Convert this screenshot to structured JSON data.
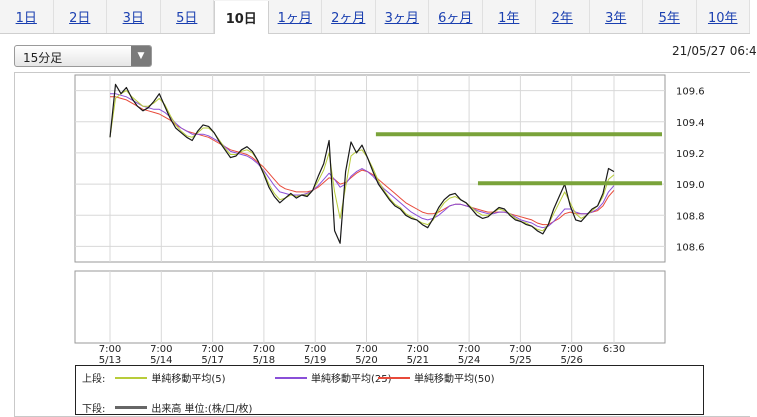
{
  "tabs": [
    "1日",
    "2日",
    "3日",
    "5日",
    "10日",
    "1ヶ月",
    "2ヶ月",
    "3ヶ月",
    "6ヶ月",
    "1年",
    "2年",
    "3年",
    "5年",
    "10年"
  ],
  "active_tab": "10日",
  "interval_select": {
    "value": "15分足"
  },
  "datetime": "21/05/27 06:4",
  "legend": {
    "upper_label": "上段:",
    "lower_label": "下段:",
    "sma5": {
      "label": "単純移動平均(5)",
      "color": "#b8cc3a"
    },
    "sma25": {
      "label": "単純移動平均(25)",
      "color": "#8a4fd8"
    },
    "sma50": {
      "label": "単純移動平均(50)",
      "color": "#e84a3a"
    },
    "volume": {
      "label": "出来高 単位:(株/口/枚)",
      "color": "#666666"
    }
  },
  "chart_data": {
    "type": "line",
    "ylim": [
      108.5,
      109.7
    ],
    "yticks": [
      "109.6",
      "109.4",
      "109.2",
      "109.0",
      "108.8",
      "108.6"
    ],
    "x_labels": [
      {
        "time": "7:00",
        "date": "5/13"
      },
      {
        "time": "7:00",
        "date": "5/14"
      },
      {
        "time": "7:00",
        "date": "5/17"
      },
      {
        "time": "7:00",
        "date": "5/18"
      },
      {
        "time": "7:00",
        "date": "5/19"
      },
      {
        "time": "7:00",
        "date": "5/20"
      },
      {
        "time": "7:00",
        "date": "5/21"
      },
      {
        "time": "7:00",
        "date": "5/24"
      },
      {
        "time": "7:00",
        "date": "5/25"
      },
      {
        "time": "7:00",
        "date": "5/26"
      },
      {
        "time": "6:30",
        "date": ""
      }
    ],
    "price_color": "#1a1a1a",
    "series": [
      {
        "key": "price",
        "values": [
          109.3,
          109.64,
          109.58,
          109.62,
          109.55,
          109.5,
          109.47,
          109.49,
          109.53,
          109.58,
          109.5,
          109.42,
          109.36,
          109.33,
          109.3,
          109.28,
          109.34,
          109.38,
          109.37,
          109.33,
          109.27,
          109.22,
          109.17,
          109.18,
          109.22,
          109.24,
          109.21,
          109.15,
          109.07,
          108.98,
          108.92,
          108.88,
          108.91,
          108.94,
          108.91,
          108.93,
          108.92,
          108.96,
          109.05,
          109.13,
          109.28,
          108.7,
          108.62,
          109.08,
          109.27,
          109.2,
          109.25,
          109.17,
          109.08,
          109.0,
          108.95,
          108.9,
          108.86,
          108.84,
          108.8,
          108.78,
          108.77,
          108.74,
          108.72,
          108.78,
          108.85,
          108.9,
          108.93,
          108.94,
          108.9,
          108.88,
          108.84,
          108.8,
          108.78,
          108.79,
          108.82,
          108.85,
          108.84,
          108.8,
          108.77,
          108.76,
          108.74,
          108.73,
          108.7,
          108.68,
          108.74,
          108.84,
          108.92,
          109.0,
          108.86,
          108.77,
          108.76,
          108.8,
          108.84,
          108.86,
          108.94,
          109.1,
          109.08
        ]
      },
      {
        "key": "sma5",
        "values": [
          109.3,
          109.55,
          109.58,
          109.6,
          109.56,
          109.53,
          109.5,
          109.5,
          109.52,
          109.55,
          109.51,
          109.44,
          109.38,
          109.34,
          109.31,
          109.3,
          109.33,
          109.36,
          109.36,
          109.33,
          109.28,
          109.23,
          109.19,
          109.19,
          109.21,
          109.22,
          109.2,
          109.15,
          109.08,
          109.0,
          108.94,
          108.9,
          108.91,
          108.93,
          108.92,
          108.93,
          108.93,
          108.96,
          109.02,
          109.09,
          109.2,
          108.95,
          108.78,
          108.98,
          109.18,
          109.21,
          109.22,
          109.17,
          109.1,
          109.02,
          108.96,
          108.91,
          108.87,
          108.85,
          108.81,
          108.79,
          108.77,
          108.75,
          108.74,
          108.77,
          108.83,
          108.88,
          108.91,
          108.92,
          108.9,
          108.88,
          108.85,
          108.82,
          108.8,
          108.8,
          108.82,
          108.84,
          108.83,
          108.81,
          108.78,
          108.76,
          108.75,
          108.73,
          108.71,
          108.7,
          108.74,
          108.81,
          108.88,
          108.95,
          108.88,
          108.81,
          108.78,
          108.8,
          108.83,
          108.86,
          108.92,
          109.03,
          109.06
        ]
      },
      {
        "key": "sma25",
        "values": [
          109.58,
          109.58,
          109.57,
          109.56,
          109.54,
          109.52,
          109.5,
          109.49,
          109.48,
          109.48,
          109.46,
          109.43,
          109.39,
          109.36,
          109.34,
          109.32,
          109.32,
          109.32,
          109.31,
          109.29,
          109.27,
          109.24,
          109.21,
          109.2,
          109.19,
          109.18,
          109.16,
          109.13,
          109.09,
          109.04,
          108.99,
          108.95,
          108.94,
          108.93,
          108.93,
          108.93,
          108.94,
          108.96,
          108.99,
          109.03,
          109.07,
          109.03,
          108.98,
          109.0,
          109.05,
          109.08,
          109.1,
          109.08,
          109.05,
          109.01,
          108.97,
          108.94,
          108.91,
          108.88,
          108.85,
          108.82,
          108.8,
          108.78,
          108.77,
          108.78,
          108.8,
          108.83,
          108.86,
          108.87,
          108.87,
          108.86,
          108.85,
          108.83,
          108.82,
          108.81,
          108.81,
          108.82,
          108.82,
          108.81,
          108.79,
          108.77,
          108.76,
          108.75,
          108.73,
          108.72,
          108.73,
          108.76,
          108.8,
          108.84,
          108.84,
          108.82,
          108.81,
          108.81,
          108.82,
          108.84,
          108.88,
          108.95,
          108.99
        ]
      },
      {
        "key": "sma50",
        "values": [
          109.56,
          109.56,
          109.55,
          109.54,
          109.52,
          109.5,
          109.48,
          109.47,
          109.46,
          109.45,
          109.43,
          109.41,
          109.38,
          109.36,
          109.34,
          109.33,
          109.32,
          109.31,
          109.3,
          109.28,
          109.26,
          109.24,
          109.22,
          109.21,
          109.2,
          109.19,
          109.17,
          109.14,
          109.11,
          109.07,
          109.03,
          108.99,
          108.97,
          108.96,
          108.95,
          108.95,
          108.95,
          108.96,
          108.98,
          109.01,
          109.04,
          109.03,
          109.0,
          109.01,
          109.04,
          109.07,
          109.09,
          109.08,
          109.06,
          109.03,
          109.0,
          108.97,
          108.94,
          108.91,
          108.88,
          108.86,
          108.84,
          108.82,
          108.81,
          108.81,
          108.82,
          108.84,
          108.86,
          108.87,
          108.87,
          108.86,
          108.85,
          108.84,
          108.83,
          108.82,
          108.82,
          108.82,
          108.82,
          108.81,
          108.8,
          108.79,
          108.78,
          108.77,
          108.75,
          108.74,
          108.74,
          108.76,
          108.78,
          108.81,
          108.82,
          108.81,
          108.81,
          108.81,
          108.82,
          108.83,
          108.86,
          108.92,
          108.96
        ]
      }
    ],
    "annotations": [
      {
        "type": "hline",
        "y": 109.32,
        "x_from": 0.51,
        "x_to": 1.09,
        "color": "#7aa33a"
      },
      {
        "type": "hline",
        "y": 109.005,
        "x_from": 0.683,
        "x_to": 1.01,
        "color": "#7aa33a"
      }
    ]
  }
}
